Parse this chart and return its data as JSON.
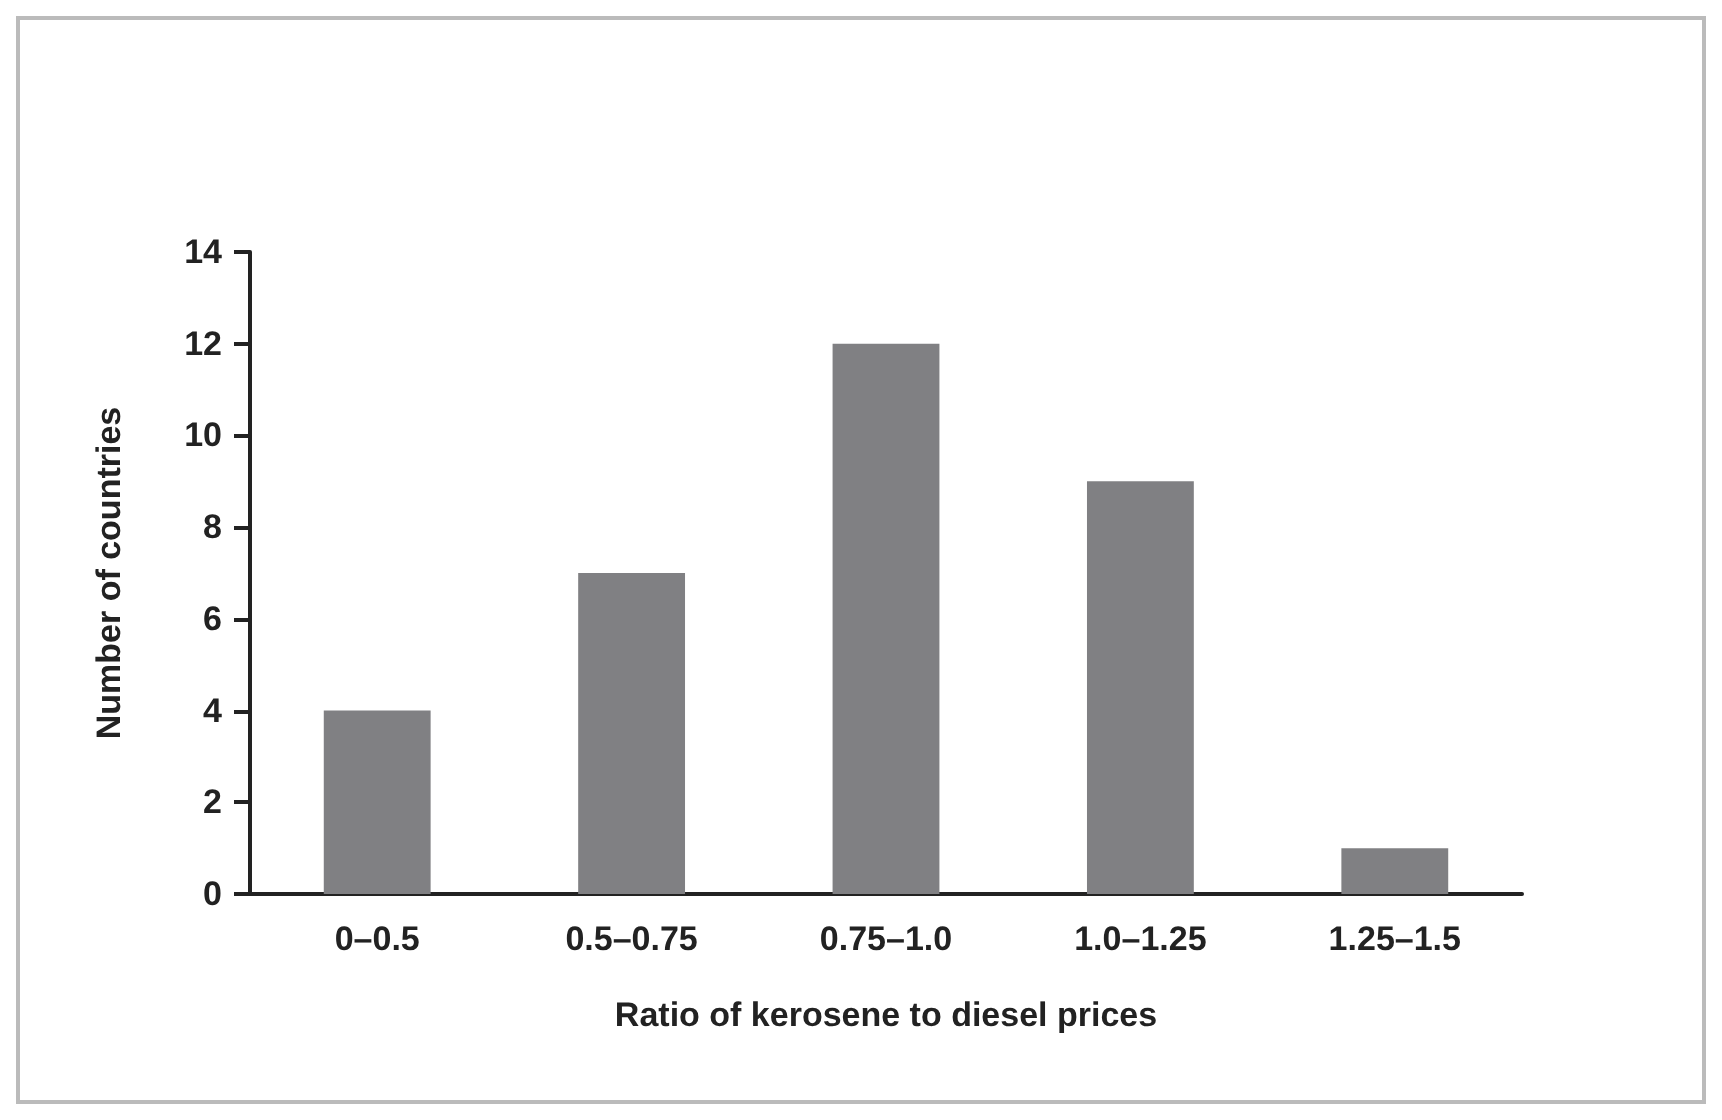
{
  "chart_data": {
    "type": "bar",
    "xlabel": "Ratio of kerosene to diesel prices",
    "ylabel": "Number of countries",
    "categories": [
      "0–0.5",
      "0.5–0.75",
      "0.75–1.0",
      "1.0–1.25",
      "1.25–1.5"
    ],
    "values": [
      4,
      7,
      12,
      9,
      1
    ],
    "color": "#808083",
    "ylim": [
      0,
      14
    ],
    "yticks": [
      0,
      2,
      4,
      6,
      8,
      10,
      12,
      14
    ],
    "grid": false
  }
}
